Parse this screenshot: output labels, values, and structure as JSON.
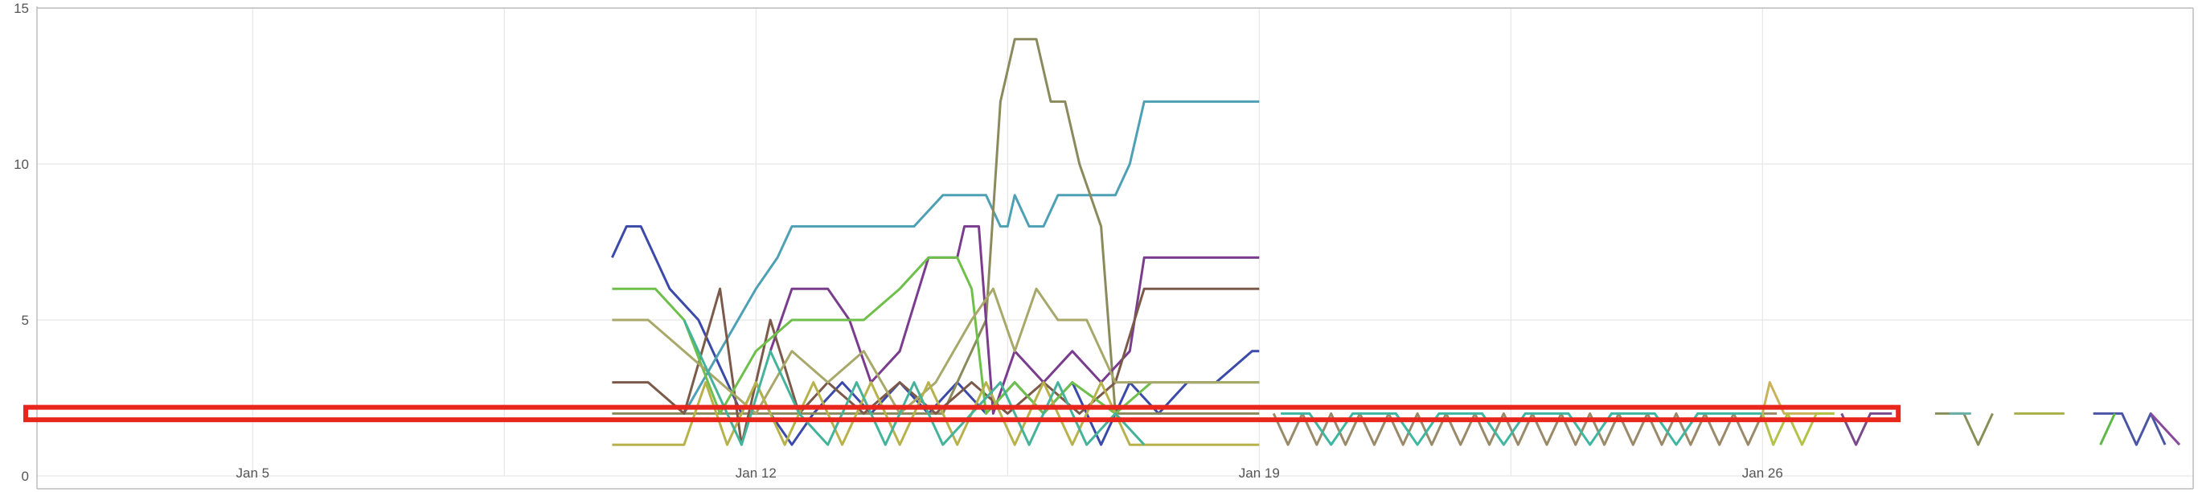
{
  "chart_data": {
    "type": "line",
    "title": "",
    "xlabel": "",
    "ylabel": "",
    "x_domain": [
      "2025-01-02",
      "2025-01-31"
    ],
    "ylim": [
      0,
      15
    ],
    "y_ticks": [
      0,
      5,
      10,
      15
    ],
    "x_ticks": [
      {
        "date": "2025-01-05",
        "label": "Jan 5"
      },
      {
        "date": "2025-01-12",
        "label": "Jan 12"
      },
      {
        "date": "2025-01-19",
        "label": "Jan 19"
      },
      {
        "date": "2025-01-26",
        "label": "Jan 26"
      }
    ],
    "grid": true,
    "legend": "none",
    "highlight_band": {
      "y_min": 1.8,
      "y_max": 2.2,
      "x_start": "2025-01-02",
      "x_end": "2025-01-28",
      "color": "#e8261c"
    },
    "series": [
      {
        "color": "#3b4aa8",
        "points": [
          [
            "2025-01-10",
            7
          ],
          [
            "2025-01-10.2",
            8
          ],
          [
            "2025-01-10.4",
            8
          ],
          [
            "2025-01-10.8",
            6
          ],
          [
            "2025-01-11.2",
            5
          ],
          [
            "2025-01-11.4",
            4
          ],
          [
            "2025-01-11.6",
            3
          ],
          [
            "2025-01-11.8",
            2
          ],
          [
            "2025-01-12",
            3
          ],
          [
            "2025-01-12.2",
            2
          ],
          [
            "2025-01-12.5",
            1
          ],
          [
            "2025-01-12.8",
            2
          ],
          [
            "2025-01-13.2",
            3
          ],
          [
            "2025-01-13.6",
            2
          ],
          [
            "2025-01-14",
            3
          ],
          [
            "2025-01-14.4",
            2
          ],
          [
            "2025-01-14.8",
            3
          ],
          [
            "2025-01-15.2",
            2
          ],
          [
            "2025-01-15.6",
            3
          ],
          [
            "2025-01-16",
            2
          ],
          [
            "2025-01-16.4",
            3
          ],
          [
            "2025-01-16.8",
            1
          ],
          [
            "2025-01-17.2",
            3
          ],
          [
            "2025-01-17.6",
            2
          ],
          [
            "2025-01-18",
            3
          ],
          [
            "2025-01-18.4",
            3
          ],
          [
            "2025-01-18.9",
            4
          ],
          [
            "2025-01-19",
            4
          ]
        ]
      },
      {
        "color": "#4ea0b5",
        "points": [
          [
            "2025-01-11",
            2
          ],
          [
            "2025-01-11.5",
            4
          ],
          [
            "2025-01-12",
            6
          ],
          [
            "2025-01-12.3",
            7
          ],
          [
            "2025-01-12.5",
            8
          ],
          [
            "2025-01-13",
            8
          ],
          [
            "2025-01-14",
            8
          ],
          [
            "2025-01-14.2",
            8
          ],
          [
            "2025-01-14.6",
            9
          ],
          [
            "2025-01-15.2",
            9
          ],
          [
            "2025-01-15.4",
            8
          ],
          [
            "2025-01-15.5",
            8
          ],
          [
            "2025-01-15.6",
            9
          ],
          [
            "2025-01-15.8",
            8
          ],
          [
            "2025-01-16",
            8
          ],
          [
            "2025-01-16.2",
            9
          ],
          [
            "2025-01-16.6",
            9
          ],
          [
            "2025-01-17",
            9
          ],
          [
            "2025-01-17.2",
            10
          ],
          [
            "2025-01-17.4",
            12
          ],
          [
            "2025-01-18",
            12
          ],
          [
            "2025-01-19",
            12
          ]
        ]
      },
      {
        "color": "#8a8a5c",
        "points": [
          [
            "2025-01-10",
            2
          ],
          [
            "2025-01-13",
            2
          ],
          [
            "2025-01-14.2",
            2
          ],
          [
            "2025-01-14.6",
            2
          ],
          [
            "2025-01-15.2",
            5
          ],
          [
            "2025-01-15.4",
            12
          ],
          [
            "2025-01-15.6",
            14
          ],
          [
            "2025-01-15.9",
            14
          ],
          [
            "2025-01-16.1",
            12
          ],
          [
            "2025-01-16.3",
            12
          ],
          [
            "2025-01-16.5",
            10
          ],
          [
            "2025-01-16.8",
            8
          ],
          [
            "2025-01-17",
            2
          ],
          [
            "2025-01-19",
            2
          ]
        ]
      },
      {
        "color": "#7a3c8c",
        "points": [
          [
            "2025-01-12.2",
            4
          ],
          [
            "2025-01-12.5",
            6
          ],
          [
            "2025-01-13",
            6
          ],
          [
            "2025-01-13.3",
            5
          ],
          [
            "2025-01-13.6",
            3
          ],
          [
            "2025-01-14",
            4
          ],
          [
            "2025-01-14.4",
            7
          ],
          [
            "2025-01-14.8",
            7
          ],
          [
            "2025-01-14.9",
            8
          ],
          [
            "2025-01-15.1",
            8
          ],
          [
            "2025-01-15.3",
            2
          ],
          [
            "2025-01-15.6",
            4
          ],
          [
            "2025-01-16",
            3
          ],
          [
            "2025-01-16.4",
            4
          ],
          [
            "2025-01-16.8",
            3
          ],
          [
            "2025-01-17.2",
            4
          ],
          [
            "2025-01-17.4",
            7
          ],
          [
            "2025-01-18",
            7
          ],
          [
            "2025-01-19",
            7
          ]
        ]
      },
      {
        "color": "#7b5a4a",
        "points": [
          [
            "2025-01-10",
            3
          ],
          [
            "2025-01-10.5",
            3
          ],
          [
            "2025-01-11",
            2
          ],
          [
            "2025-01-11.5",
            6
          ],
          [
            "2025-01-11.8",
            1
          ],
          [
            "2025-01-12.2",
            5
          ],
          [
            "2025-01-12.6",
            2
          ],
          [
            "2025-01-13",
            3
          ],
          [
            "2025-01-13.5",
            2
          ],
          [
            "2025-01-14",
            3
          ],
          [
            "2025-01-14.5",
            2
          ],
          [
            "2025-01-15",
            3
          ],
          [
            "2025-01-15.5",
            2
          ],
          [
            "2025-01-16",
            3
          ],
          [
            "2025-01-16.5",
            2
          ],
          [
            "2025-01-17",
            3
          ],
          [
            "2025-01-17.4",
            6
          ],
          [
            "2025-01-18",
            6
          ],
          [
            "2025-01-19",
            6
          ]
        ]
      },
      {
        "color": "#6fbf4b",
        "points": [
          [
            "2025-01-10",
            6
          ],
          [
            "2025-01-10.6",
            6
          ],
          [
            "2025-01-11",
            5
          ],
          [
            "2025-01-11.5",
            2
          ],
          [
            "2025-01-12",
            4
          ],
          [
            "2025-01-12.5",
            5
          ],
          [
            "2025-01-13",
            5
          ],
          [
            "2025-01-13.5",
            5
          ],
          [
            "2025-01-14",
            6
          ],
          [
            "2025-01-14.4",
            7
          ],
          [
            "2025-01-14.8",
            7
          ],
          [
            "2025-01-15",
            6
          ],
          [
            "2025-01-15.2",
            2
          ],
          [
            "2025-01-15.6",
            3
          ],
          [
            "2025-01-16",
            2
          ],
          [
            "2025-01-16.4",
            3
          ],
          [
            "2025-01-17",
            2
          ],
          [
            "2025-01-17.5",
            3
          ],
          [
            "2025-01-18",
            3
          ],
          [
            "2025-01-19",
            3
          ]
        ]
      },
      {
        "color": "#a8a86a",
        "points": [
          [
            "2025-01-10",
            5
          ],
          [
            "2025-01-10.5",
            5
          ],
          [
            "2025-01-11",
            4
          ],
          [
            "2025-01-11.5",
            3
          ],
          [
            "2025-01-12",
            2
          ],
          [
            "2025-01-12.5",
            4
          ],
          [
            "2025-01-13",
            3
          ],
          [
            "2025-01-13.5",
            4
          ],
          [
            "2025-01-14",
            2
          ],
          [
            "2025-01-14.5",
            3
          ],
          [
            "2025-01-15",
            5
          ],
          [
            "2025-01-15.3",
            6
          ],
          [
            "2025-01-15.6",
            4
          ],
          [
            "2025-01-15.9",
            6
          ],
          [
            "2025-01-16.2",
            5
          ],
          [
            "2025-01-16.6",
            5
          ],
          [
            "2025-01-17",
            3
          ],
          [
            "2025-01-17.6",
            3
          ],
          [
            "2025-01-18",
            3
          ],
          [
            "2025-01-18.6",
            3
          ],
          [
            "2025-01-19",
            3
          ]
        ]
      },
      {
        "color": "#b8b24c",
        "points": [
          [
            "2025-01-10",
            1
          ],
          [
            "2025-01-11",
            1
          ],
          [
            "2025-01-11.3",
            3
          ],
          [
            "2025-01-11.6",
            1
          ],
          [
            "2025-01-12",
            3
          ],
          [
            "2025-01-12.4",
            1
          ],
          [
            "2025-01-12.8",
            3
          ],
          [
            "2025-01-13.2",
            1
          ],
          [
            "2025-01-13.6",
            3
          ],
          [
            "2025-01-14",
            1
          ],
          [
            "2025-01-14.4",
            3
          ],
          [
            "2025-01-14.8",
            1
          ],
          [
            "2025-01-15.2",
            3
          ],
          [
            "2025-01-15.6",
            1
          ],
          [
            "2025-01-16",
            3
          ],
          [
            "2025-01-16.4",
            1
          ],
          [
            "2025-01-16.8",
            3
          ],
          [
            "2025-01-17.2",
            1
          ],
          [
            "2025-01-19",
            1
          ]
        ]
      },
      {
        "color": "#45b39a",
        "points": [
          [
            "2025-01-11",
            5
          ],
          [
            "2025-01-11.4",
            3
          ],
          [
            "2025-01-11.8",
            1
          ],
          [
            "2025-01-12.2",
            4
          ],
          [
            "2025-01-12.6",
            2
          ],
          [
            "2025-01-13",
            1
          ],
          [
            "2025-01-13.4",
            3
          ],
          [
            "2025-01-13.8",
            1
          ],
          [
            "2025-01-14.2",
            3
          ],
          [
            "2025-01-14.6",
            1
          ],
          [
            "2025-01-15",
            2
          ],
          [
            "2025-01-15.4",
            3
          ],
          [
            "2025-01-15.8",
            1
          ],
          [
            "2025-01-16.2",
            3
          ],
          [
            "2025-01-16.6",
            1
          ],
          [
            "2025-01-17",
            2
          ],
          [
            "2025-01-17.4",
            1
          ]
        ]
      },
      {
        "color": "#9a8a6a",
        "points": [
          [
            "2025-01-19.2",
            2
          ],
          [
            "2025-01-19.4",
            1
          ],
          [
            "2025-01-19.6",
            2
          ],
          [
            "2025-01-19.8",
            1
          ],
          [
            "2025-01-20",
            2
          ],
          [
            "2025-01-20.2",
            1
          ],
          [
            "2025-01-20.4",
            2
          ],
          [
            "2025-01-20.6",
            1
          ],
          [
            "2025-01-20.8",
            2
          ],
          [
            "2025-01-21",
            1
          ],
          [
            "2025-01-21.2",
            2
          ],
          [
            "2025-01-21.4",
            1
          ],
          [
            "2025-01-21.6",
            2
          ],
          [
            "2025-01-21.8",
            1
          ],
          [
            "2025-01-22",
            2
          ],
          [
            "2025-01-22.2",
            1
          ],
          [
            "2025-01-22.4",
            2
          ],
          [
            "2025-01-22.6",
            1
          ],
          [
            "2025-01-22.8",
            2
          ],
          [
            "2025-01-23",
            1
          ],
          [
            "2025-01-23.2",
            2
          ],
          [
            "2025-01-23.4",
            1
          ],
          [
            "2025-01-23.6",
            2
          ],
          [
            "2025-01-23.8",
            1
          ],
          [
            "2025-01-24",
            2
          ],
          [
            "2025-01-24.2",
            1
          ],
          [
            "2025-01-24.4",
            2
          ],
          [
            "2025-01-24.6",
            1
          ],
          [
            "2025-01-24.8",
            2
          ],
          [
            "2025-01-25",
            1
          ],
          [
            "2025-01-25.2",
            2
          ],
          [
            "2025-01-25.4",
            1
          ],
          [
            "2025-01-25.6",
            2
          ],
          [
            "2025-01-25.8",
            1
          ],
          [
            "2025-01-26",
            2
          ],
          [
            "2025-01-26.2",
            2
          ]
        ]
      },
      {
        "color": "#3fb6a0",
        "points": [
          [
            "2025-01-19.3",
            2
          ],
          [
            "2025-01-19.7",
            2
          ],
          [
            "2025-01-20",
            1
          ],
          [
            "2025-01-20.3",
            2
          ],
          [
            "2025-01-20.9",
            2
          ],
          [
            "2025-01-21.2",
            1
          ],
          [
            "2025-01-21.5",
            2
          ],
          [
            "2025-01-22.1",
            2
          ],
          [
            "2025-01-22.4",
            1
          ],
          [
            "2025-01-22.7",
            2
          ],
          [
            "2025-01-23.3",
            2
          ],
          [
            "2025-01-23.6",
            1
          ],
          [
            "2025-01-23.9",
            2
          ],
          [
            "2025-01-24.5",
            2
          ],
          [
            "2025-01-24.8",
            1
          ],
          [
            "2025-01-25.1",
            2
          ],
          [
            "2025-01-25.7",
            2
          ],
          [
            "2025-01-26",
            2
          ]
        ]
      },
      {
        "color": "#c9b25a",
        "points": [
          [
            "2025-01-26",
            2
          ],
          [
            "2025-01-26.1",
            3
          ],
          [
            "2025-01-26.3",
            2
          ],
          [
            "2025-01-27",
            2
          ]
        ]
      },
      {
        "color": "#b5c24a",
        "points": [
          [
            "2025-01-26",
            2
          ],
          [
            "2025-01-26.15",
            1
          ],
          [
            "2025-01-26.35",
            2
          ],
          [
            "2025-01-26.55",
            1
          ],
          [
            "2025-01-26.75",
            2
          ],
          [
            "2025-01-27",
            2
          ]
        ]
      },
      {
        "color": "#7a4a8a",
        "points": [
          [
            "2025-01-27.1",
            2
          ],
          [
            "2025-01-27.3",
            1
          ],
          [
            "2025-01-27.5",
            2
          ],
          [
            "2025-01-27.8",
            2
          ]
        ]
      },
      {
        "color": "#8a8f5a",
        "points": [
          [
            "2025-01-28.4",
            2
          ],
          [
            "2025-01-28.8",
            2
          ],
          [
            "2025-01-29",
            1
          ],
          [
            "2025-01-29.2",
            2
          ]
        ]
      },
      {
        "color": "#6ab0a8",
        "points": [
          [
            "2025-01-28.6",
            2
          ],
          [
            "2025-01-28.9",
            2
          ]
        ]
      },
      {
        "color": "#a8b04a",
        "points": [
          [
            "2025-01-29.5",
            2
          ],
          [
            "2025-01-30.2",
            2
          ]
        ]
      },
      {
        "color": "#4a55a5",
        "points": [
          [
            "2025-01-30.6",
            2
          ],
          [
            "2025-01-31",
            2
          ],
          [
            "2025-01-31.2",
            1
          ],
          [
            "2025-01-31.4",
            2
          ],
          [
            "2025-01-31.6",
            1
          ]
        ]
      },
      {
        "color": "#5fb84a",
        "points": [
          [
            "2025-01-30.7",
            1
          ],
          [
            "2025-01-30.9",
            2
          ]
        ]
      },
      {
        "color": "#8a4a9a",
        "points": [
          [
            "2025-01-31.4",
            2
          ],
          [
            "2025-01-31.8",
            1
          ]
        ]
      }
    ]
  }
}
